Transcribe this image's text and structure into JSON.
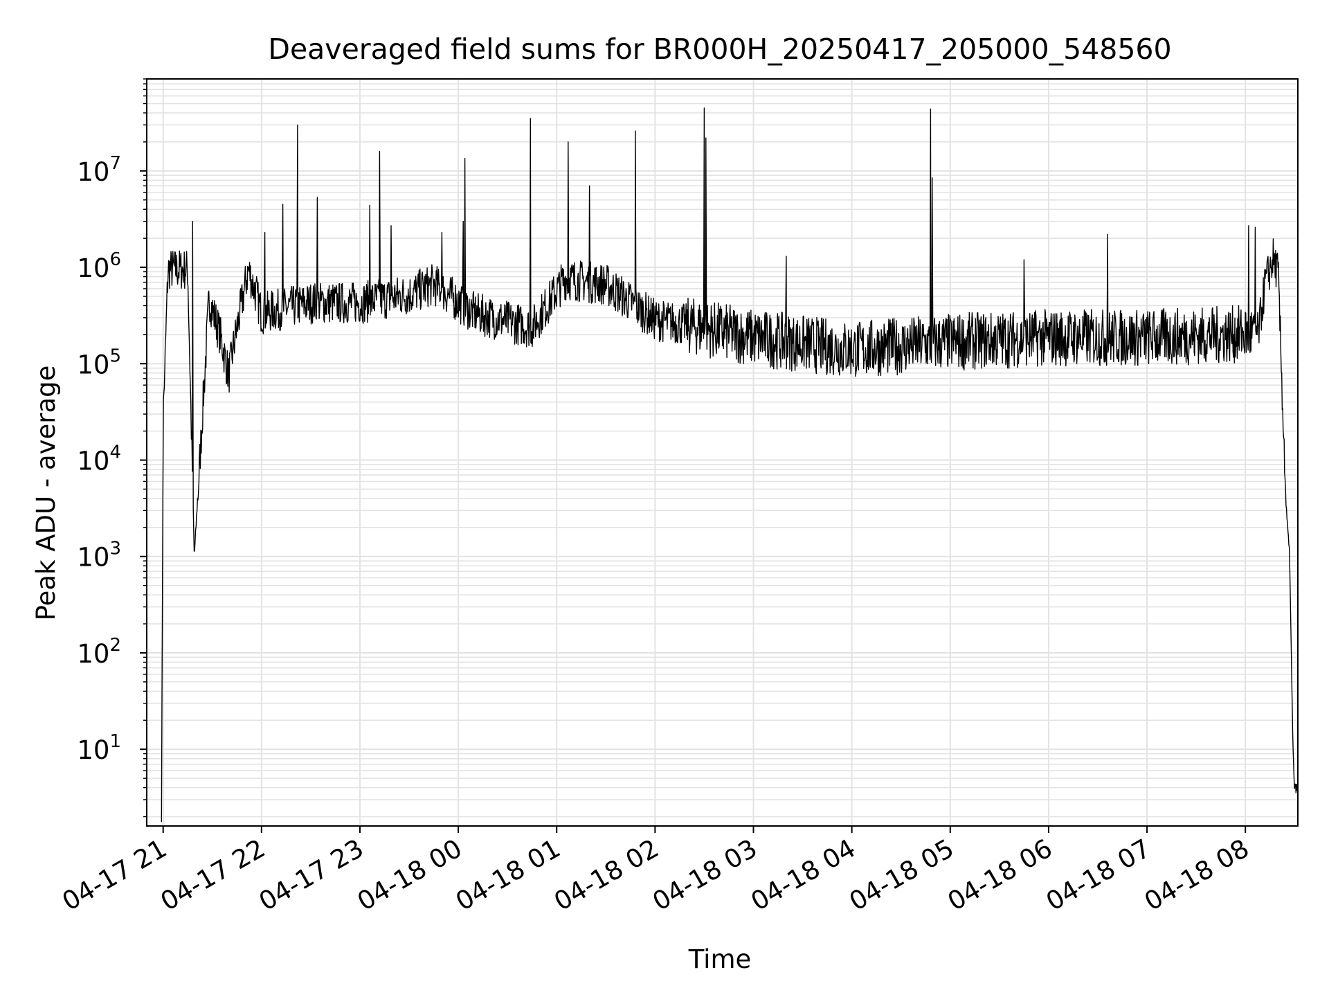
{
  "chart_data": {
    "type": "line",
    "title": "Deaveraged field sums for BR000H_20250417_205000_548560",
    "xlabel": "Time",
    "ylabel": "Peak ADU - average",
    "yscale": "log",
    "ylim": [
      1.6,
      90000000
    ],
    "xlim": [
      "2025-04-17 20:50",
      "2025-04-18 08:32"
    ],
    "grid": true,
    "x_tick_labels": [
      "04-17 21",
      "04-17 22",
      "04-17 23",
      "04-18 00",
      "04-18 01",
      "04-18 02",
      "04-18 03",
      "04-18 04",
      "04-18 05",
      "04-18 06",
      "04-18 07",
      "04-18 08"
    ],
    "x_ticks": [
      "2025-04-17 21:00",
      "2025-04-17 22:00",
      "2025-04-17 23:00",
      "2025-04-18 00:00",
      "2025-04-18 01:00",
      "2025-04-18 02:00",
      "2025-04-18 03:00",
      "2025-04-18 04:00",
      "2025-04-18 05:00",
      "2025-04-18 06:00",
      "2025-04-18 07:00",
      "2025-04-18 08:00"
    ],
    "y_ticks": [
      {
        "base": "10",
        "exp": "1",
        "value": 10
      },
      {
        "base": "10",
        "exp": "2",
        "value": 100
      },
      {
        "base": "10",
        "exp": "3",
        "value": 1000
      },
      {
        "base": "10",
        "exp": "4",
        "value": 10000
      },
      {
        "base": "10",
        "exp": "5",
        "value": 100000
      },
      {
        "base": "10",
        "exp": "6",
        "value": 1000000
      },
      {
        "base": "10",
        "exp": "7",
        "value": 10000000
      }
    ],
    "series": [
      {
        "color": "#000000",
        "baseline": [
          [
            "2025-04-17 20:59",
            2
          ],
          [
            "2025-04-17 21:00",
            30000
          ],
          [
            "2025-04-17 21:03",
            1000000
          ],
          [
            "2025-04-17 21:15",
            1000000
          ],
          [
            "2025-04-17 21:19",
            1000
          ],
          [
            "2025-04-17 21:22",
            8000
          ],
          [
            "2025-04-17 21:28",
            500000
          ],
          [
            "2025-04-17 21:35",
            200000
          ],
          [
            "2025-04-17 21:40",
            80000
          ],
          [
            "2025-04-17 21:44",
            200000
          ],
          [
            "2025-04-17 21:52",
            1000000
          ],
          [
            "2025-04-17 22:00",
            350000
          ],
          [
            "2025-04-17 22:30",
            450000
          ],
          [
            "2025-04-17 23:00",
            450000
          ],
          [
            "2025-04-17 23:30",
            550000
          ],
          [
            "2025-04-17 23:45",
            700000
          ],
          [
            "2025-04-18 00:10",
            350000
          ],
          [
            "2025-04-18 00:45",
            250000
          ],
          [
            "2025-04-18 01:05",
            800000
          ],
          [
            "2025-04-18 01:30",
            700000
          ],
          [
            "2025-04-18 02:00",
            300000
          ],
          [
            "2025-04-18 02:30",
            250000
          ],
          [
            "2025-04-18 03:00",
            200000
          ],
          [
            "2025-04-18 04:00",
            150000
          ],
          [
            "2025-04-18 05:00",
            180000
          ],
          [
            "2025-04-18 06:00",
            200000
          ],
          [
            "2025-04-18 07:00",
            200000
          ],
          [
            "2025-04-18 08:08",
            220000
          ],
          [
            "2025-04-18 08:12",
            700000
          ],
          [
            "2025-04-18 08:17",
            1300000
          ],
          [
            "2025-04-18 08:20",
            900000
          ],
          [
            "2025-04-18 08:25",
            3000
          ],
          [
            "2025-04-18 08:27",
            1000
          ],
          [
            "2025-04-18 08:29",
            10
          ],
          [
            "2025-04-18 08:30",
            4
          ],
          [
            "2025-04-18 08:32",
            4
          ]
        ],
        "spikes": [
          [
            "2025-04-17 21:01",
            90000
          ],
          [
            "2025-04-17 21:18",
            3000000
          ],
          [
            "2025-04-17 21:57",
            800000
          ],
          [
            "2025-04-17 22:02",
            2300000
          ],
          [
            "2025-04-17 22:13",
            4500000
          ],
          [
            "2025-04-17 22:22",
            30000000
          ],
          [
            "2025-04-17 22:34",
            5300000
          ],
          [
            "2025-04-17 23:06",
            4400000
          ],
          [
            "2025-04-17 23:12",
            16000000
          ],
          [
            "2025-04-17 23:19",
            2700000
          ],
          [
            "2025-04-17 23:50",
            2300000
          ],
          [
            "2025-04-18 00:03",
            3000000
          ],
          [
            "2025-04-18 00:04",
            13500000
          ],
          [
            "2025-04-18 00:44",
            35000000
          ],
          [
            "2025-04-18 01:07",
            20000000
          ],
          [
            "2025-04-18 01:20",
            7000000
          ],
          [
            "2025-04-18 01:48",
            26000000
          ],
          [
            "2025-04-18 02:30",
            45000000
          ],
          [
            "2025-04-18 02:31",
            22000000
          ],
          [
            "2025-04-18 03:20",
            1300000
          ],
          [
            "2025-04-18 04:48",
            44000000
          ],
          [
            "2025-04-18 04:49",
            8500000
          ],
          [
            "2025-04-18 05:45",
            1200000
          ],
          [
            "2025-04-18 06:36",
            2200000
          ],
          [
            "2025-04-18 08:02",
            2700000
          ],
          [
            "2025-04-18 08:06",
            2600000
          ]
        ]
      }
    ]
  }
}
